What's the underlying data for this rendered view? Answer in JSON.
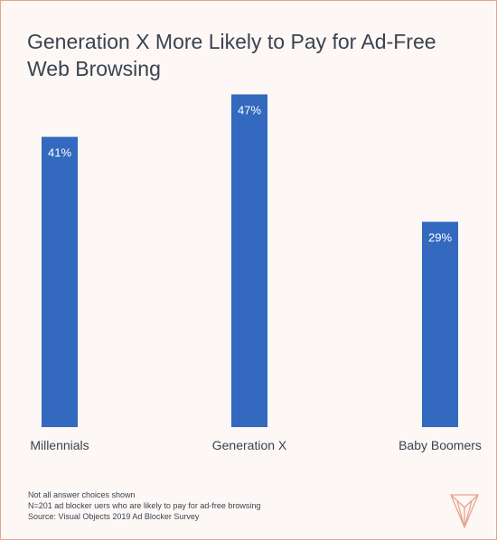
{
  "chart_data": {
    "type": "bar",
    "title": "Generation X More Likely to Pay for Ad-Free Web Browsing",
    "categories": [
      "Millennials",
      "Generation X",
      "Baby Boomers"
    ],
    "values": [
      41,
      47,
      29
    ],
    "value_labels": [
      "41%",
      "47%",
      "29%"
    ],
    "unit": "%",
    "ylim": [
      0,
      50
    ],
    "grid": false,
    "legend": "none",
    "bar_color": "#3369bf"
  },
  "notes": [
    "Not all answer choices shown",
    "N=201 ad blocker uers who are likely to pay for ad-free browsing",
    "Source: Visual Objects 2019 Ad Blocker Survey"
  ],
  "colors": {
    "border": "#e8a38c",
    "text": "#3b4250",
    "logo": "#e8a38c"
  },
  "logo_icon": "visual-objects-logo-icon"
}
